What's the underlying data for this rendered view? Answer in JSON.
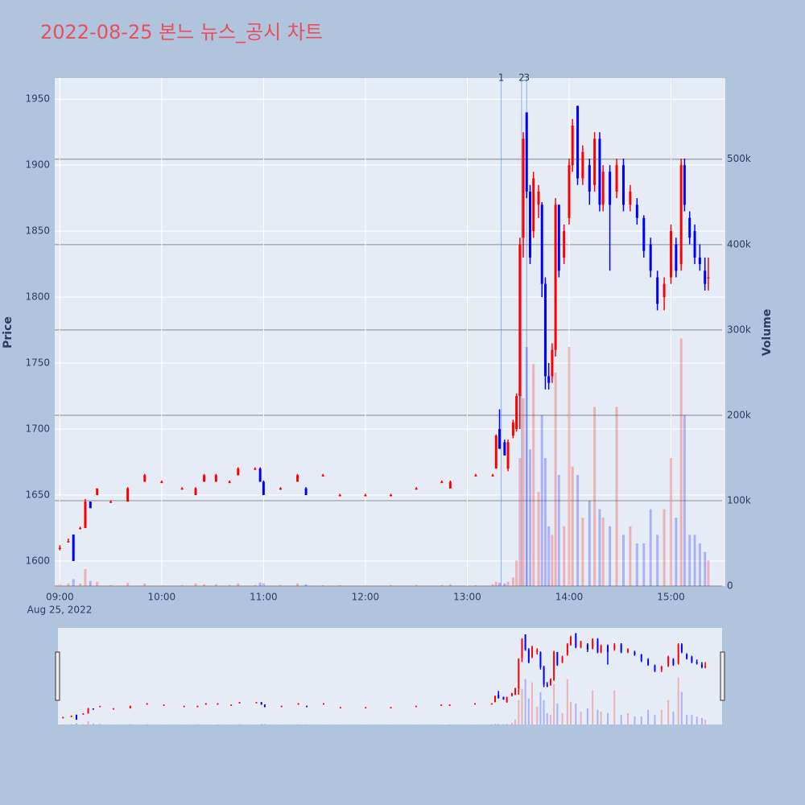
{
  "chart_data": {
    "type": "candlestick",
    "title": "2022-08-25 본느 뉴스_공시 차트",
    "y_label": "Price",
    "y2_label": "Volume",
    "x_date_label": "Aug 25, 2022",
    "increasing_color": "#ff0000",
    "decreasing_color": "#0000ff",
    "grid": true,
    "xlim": [
      "08:57",
      "15:32"
    ],
    "xticks": [
      "09:00",
      "10:00",
      "11:00",
      "12:00",
      "13:00",
      "14:00",
      "15:00"
    ],
    "ylim": [
      1581,
      1966
    ],
    "yticks": [
      1600,
      1650,
      1700,
      1750,
      1800,
      1850,
      1900,
      1950
    ],
    "y2lim": [
      0,
      595000
    ],
    "y2ticks": [
      0,
      {
        "value": 100000,
        "label": "100k"
      },
      {
        "value": 200000,
        "label": "200k"
      },
      {
        "value": 300000,
        "label": "300k"
      },
      {
        "value": 400000,
        "label": "400k"
      },
      {
        "value": 500000,
        "label": "500k"
      }
    ],
    "news": [
      {
        "x": "13:20",
        "label": "1"
      },
      {
        "x": "13:32",
        "label": "2"
      },
      {
        "x": "13:35",
        "label": "3"
      }
    ],
    "x": [
      "09:00",
      "09:05",
      "09:08",
      "09:12",
      "09:15",
      "09:18",
      "09:22",
      "09:30",
      "09:40",
      "09:50",
      "10:00",
      "10:12",
      "10:20",
      "10:25",
      "10:32",
      "10:40",
      "10:45",
      "10:55",
      "10:58",
      "11:00",
      "11:10",
      "11:20",
      "11:25",
      "11:35",
      "11:45",
      "12:00",
      "12:15",
      "12:30",
      "12:45",
      "12:50",
      "13:05",
      "13:15",
      "13:17",
      "13:19",
      "13:22",
      "13:24",
      "13:27",
      "13:29",
      "13:31",
      "13:33",
      "13:35",
      "13:37",
      "13:39",
      "13:42",
      "13:44",
      "13:46",
      "13:48",
      "13:50",
      "13:52",
      "13:54",
      "13:57",
      "14:00",
      "14:02",
      "14:05",
      "14:08",
      "14:12",
      "14:15",
      "14:18",
      "14:20",
      "14:24",
      "14:28",
      "14:32",
      "14:36",
      "14:40",
      "14:44",
      "14:48",
      "14:52",
      "14:56",
      "15:00",
      "15:03",
      "15:06",
      "15:08",
      "15:11",
      "15:14",
      "15:17",
      "15:20",
      "15:22"
    ],
    "open": [
      1610,
      1615,
      1620,
      1625,
      1625,
      1645,
      1650,
      1645,
      1645,
      1660,
      1660,
      1655,
      1650,
      1660,
      1660,
      1660,
      1665,
      1670,
      1670,
      1660,
      1655,
      1660,
      1655,
      1665,
      1650,
      1650,
      1650,
      1655,
      1660,
      1655,
      1665,
      1665,
      1670,
      1700,
      1690,
      1670,
      1695,
      1700,
      1725,
      1845,
      1940,
      1880,
      1850,
      1870,
      1870,
      1810,
      1740,
      1740,
      1760,
      1870,
      1830,
      1860,
      1900,
      1945,
      1890,
      1900,
      1885,
      1920,
      1870,
      1895,
      1880,
      1900,
      1870,
      1870,
      1860,
      1840,
      1815,
      1800,
      1815,
      1840,
      1825,
      1900,
      1860,
      1850,
      1830,
      1820,
      1815
    ],
    "high": [
      1612,
      1617,
      1620,
      1626,
      1647,
      1645,
      1655,
      1646,
      1656,
      1666,
      1661,
      1656,
      1656,
      1666,
      1666,
      1661,
      1671,
      1671,
      1671,
      1661,
      1656,
      1666,
      1656,
      1666,
      1651,
      1651,
      1651,
      1656,
      1661,
      1661,
      1666,
      1666,
      1696,
      1715,
      1692,
      1692,
      1707,
      1727,
      1845,
      1925,
      1940,
      1885,
      1895,
      1885,
      1872,
      1815,
      1750,
      1765,
      1875,
      1870,
      1855,
      1905,
      1935,
      1945,
      1915,
      1905,
      1925,
      1925,
      1900,
      1900,
      1905,
      1905,
      1885,
      1875,
      1862,
      1845,
      1820,
      1815,
      1855,
      1845,
      1905,
      1905,
      1865,
      1855,
      1840,
      1830,
      1830
    ],
    "low": [
      1608,
      1614,
      1600,
      1624,
      1625,
      1640,
      1650,
      1644,
      1645,
      1660,
      1659,
      1654,
      1650,
      1660,
      1660,
      1659,
      1665,
      1669,
      1660,
      1650,
      1654,
      1660,
      1650,
      1664,
      1649,
      1649,
      1649,
      1654,
      1659,
      1655,
      1664,
      1664,
      1670,
      1685,
      1680,
      1668,
      1693,
      1698,
      1700,
      1830,
      1875,
      1825,
      1845,
      1860,
      1800,
      1730,
      1730,
      1735,
      1755,
      1815,
      1825,
      1855,
      1895,
      1885,
      1885,
      1870,
      1880,
      1865,
      1865,
      1820,
      1875,
      1865,
      1865,
      1855,
      1830,
      1815,
      1790,
      1790,
      1810,
      1815,
      1820,
      1865,
      1840,
      1825,
      1820,
      1805,
      1805
    ],
    "close": [
      1610,
      1615,
      1600,
      1625,
      1645,
      1640,
      1655,
      1645,
      1655,
      1665,
      1660,
      1655,
      1655,
      1665,
      1665,
      1660,
      1670,
      1670,
      1660,
      1650,
      1655,
      1665,
      1650,
      1665,
      1650,
      1650,
      1650,
      1655,
      1660,
      1660,
      1665,
      1665,
      1695,
      1685,
      1680,
      1690,
      1705,
      1725,
      1840,
      1920,
      1880,
      1830,
      1890,
      1880,
      1810,
      1740,
      1735,
      1760,
      1870,
      1820,
      1850,
      1900,
      1930,
      1890,
      1910,
      1880,
      1920,
      1870,
      1895,
      1870,
      1900,
      1870,
      1880,
      1860,
      1835,
      1820,
      1795,
      1810,
      1850,
      1820,
      1900,
      1870,
      1845,
      1830,
      1825,
      1810,
      1815
    ],
    "volume": [
      2000,
      3000,
      8000,
      3000,
      20000,
      6000,
      5000,
      1000,
      4000,
      3000,
      1000,
      1000,
      3000,
      2000,
      2000,
      1000,
      3000,
      1000,
      4000,
      3000,
      1000,
      3000,
      2000,
      1000,
      1000,
      1000,
      1000,
      1000,
      1000,
      2000,
      1000,
      2000,
      5000,
      4000,
      3000,
      5000,
      10000,
      30000,
      150000,
      220000,
      280000,
      160000,
      260000,
      110000,
      200000,
      150000,
      70000,
      60000,
      250000,
      130000,
      70000,
      280000,
      140000,
      130000,
      80000,
      100000,
      210000,
      90000,
      80000,
      70000,
      210000,
      60000,
      70000,
      50000,
      50000,
      90000,
      60000,
      90000,
      150000,
      80000,
      290000,
      200000,
      60000,
      60000,
      50000,
      40000,
      30000
    ]
  }
}
